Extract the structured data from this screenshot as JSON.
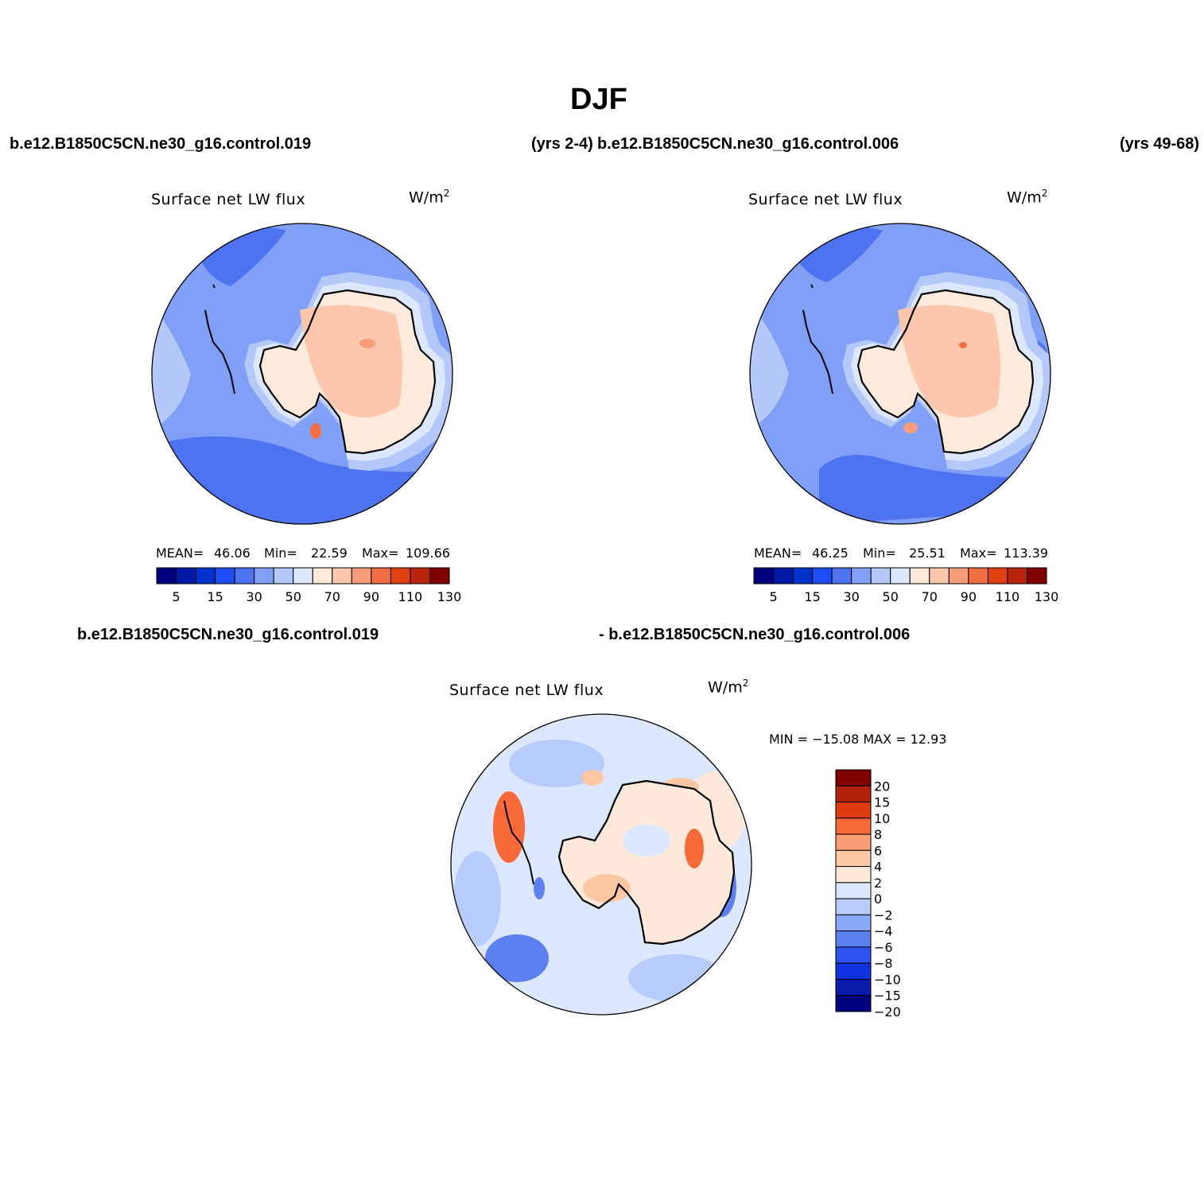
{
  "figure": {
    "title": "DJF",
    "case_top_left": "b.e12.B1850C5CN.ne30_g16.control.019",
    "years_top_left": "(yrs 2-4)",
    "case_top_right": "b.e12.B1850C5CN.ne30_g16.control.006",
    "years_top_right": "(yrs 49-68)",
    "case_diff_a": "b.e12.B1850C5CN.ne30_g16.control.019",
    "case_diff_b": "- b.e12.B1850C5CN.ne30_g16.control.006"
  },
  "panels": [
    {
      "title": "Surface net LW flux",
      "units": "W/m",
      "units_sup": "2",
      "mean_label": "MEAN=",
      "mean": "46.06",
      "min_label": "Min=",
      "min": "22.59",
      "max_label": "Max=",
      "max": "109.66"
    },
    {
      "title": "Surface net LW flux",
      "units": "W/m",
      "units_sup": "2",
      "mean_label": "MEAN=",
      "mean": "46.25",
      "min_label": "Min=",
      "min": "25.51",
      "max_label": "Max=",
      "max": "113.39"
    },
    {
      "title": "Surface net LW flux",
      "units": "W/m",
      "units_sup": "2",
      "minmax_text": "MIN = −15.08 MAX =   12.93"
    }
  ],
  "colorbar_main": {
    "colors": [
      "#00007f",
      "#0019a8",
      "#0033cc",
      "#1f4df5",
      "#4d73f0",
      "#809ff7",
      "#b5c8fa",
      "#dbe8ff",
      "#ffeadb",
      "#fcc7ad",
      "#f79c7a",
      "#f26e45",
      "#e0420f",
      "#ba240d",
      "#800000"
    ],
    "tick_labels": [
      "5",
      "15",
      "30",
      "50",
      "70",
      "90",
      "110",
      "130"
    ]
  },
  "colorbar_diff": {
    "colors": [
      "#800000",
      "#b3200d",
      "#e03b0d",
      "#fa6938",
      "#fc9e75",
      "#fcc7a3",
      "#ffe9db",
      "#dbe8ff",
      "#b8ccfc",
      "#8aaaf7",
      "#5c80f2",
      "#2e55f2",
      "#0f33e0",
      "#0a1aad",
      "#00007f"
    ],
    "tick_labels": [
      "20",
      "15",
      "10",
      "8",
      "6",
      "4",
      "2",
      "0",
      "−2",
      "−4",
      "−6",
      "−8",
      "−10",
      "−15",
      "−20"
    ]
  },
  "map_colors": {
    "ocean_dark": "#4d73f0",
    "ocean_mid": "#809ff7",
    "ocean_light": "#b5c8fa",
    "coast": "#dbe8ff",
    "land_light": "#ffeadb",
    "land": "#fcc7ad",
    "hot": "#f26e45",
    "diff_pos_light": "#ffe9db",
    "diff_pos": "#fcc7a3",
    "diff_pos_strong": "#fa6938",
    "diff_neg_light": "#dbe8ff",
    "diff_neg": "#b8ccfc",
    "diff_neg_strong": "#5c80f2"
  }
}
